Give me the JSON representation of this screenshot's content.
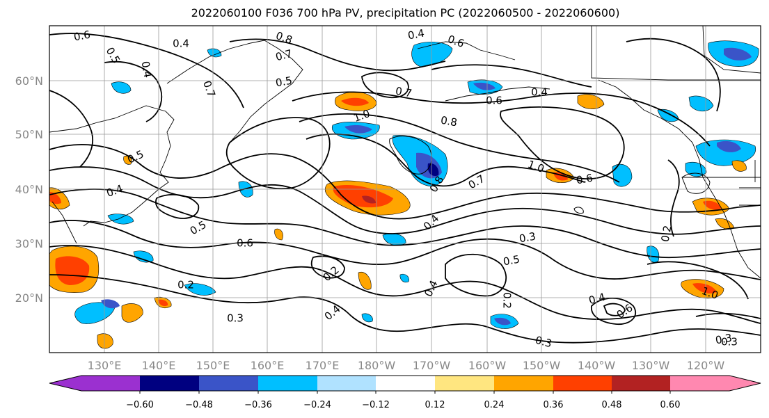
{
  "title": "2022060100 F036 700 hPa PV, precipitation PC (2022060500 - 2022060600)",
  "map": {
    "lat_labels": [
      "60°N",
      "50°N",
      "40°N",
      "30°N",
      "20°N"
    ],
    "lon_labels": [
      "130°E",
      "140°E",
      "150°E",
      "160°E",
      "170°E",
      "180°W",
      "170°W",
      "160°W",
      "150°W",
      "140°W",
      "130°W",
      "120°W"
    ],
    "contour_labels": [
      "0.6",
      "0.4",
      "0.8",
      "0.4",
      "0.6",
      "0.5",
      "0.7",
      "0.4",
      "0.5",
      "0.7",
      "1.0",
      "0.7",
      "0.6",
      "0.8",
      "0.4",
      "0.5",
      "0.4",
      "0.8",
      "1.0",
      "0.6",
      "0.7",
      "0.5",
      "0.6",
      "0.4",
      "0.3",
      "0.5",
      "0.2",
      "0.2",
      "0.3",
      "0.4",
      "0.4",
      "0.4",
      "0.6",
      "0.2",
      "0.3",
      "0.2",
      "0.3",
      "0.3",
      "1.0"
    ]
  },
  "colorbar": {
    "ticks": [
      "−0.60",
      "−0.48",
      "−0.36",
      "−0.24",
      "−0.12",
      "0.12",
      "0.24",
      "0.36",
      "0.48",
      "0.60"
    ],
    "colors": [
      "#9b30d0",
      "#000080",
      "#3a54c8",
      "#00bfff",
      "#b0e2ff",
      "#ffffff",
      "#ffe680",
      "#ffa500",
      "#ff4000",
      "#b22222",
      "#ff88b0"
    ]
  }
}
